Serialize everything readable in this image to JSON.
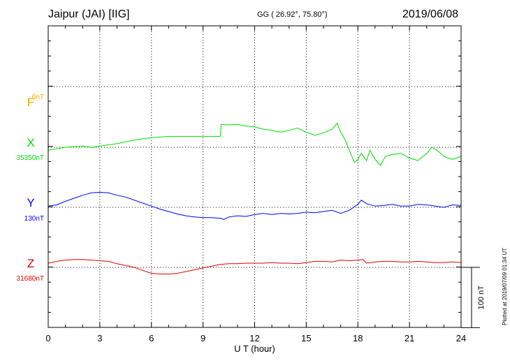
{
  "header": {
    "station": "Jaipur (JAI)  [IIG]",
    "coords": "GG ( 26.92°,  75.80°)",
    "date": "2019/06/08"
  },
  "footer": {
    "plotted": "Plotted at 2019/07/09 01:34 UT"
  },
  "scale_bar_label": "100 nT",
  "chart_data": {
    "type": "line",
    "xlabel": "U T (hour)",
    "xlim": [
      0,
      24
    ],
    "xticks": [
      0,
      3,
      6,
      9,
      12,
      15,
      18,
      21,
      24
    ],
    "grid": true,
    "scale_nT_per_division": 100,
    "series": [
      {
        "name": "F",
        "baseline_label": "0nT",
        "color": "#ffa500",
        "x": [],
        "values": []
      },
      {
        "name": "X",
        "baseline_label": "35350nT",
        "color": "#00dd00",
        "x": [
          0,
          1,
          2,
          2.5,
          3,
          3.5,
          4,
          5,
          6,
          7,
          8,
          9,
          10,
          10.05,
          10.5,
          11,
          11.5,
          12,
          12.5,
          13,
          13.5,
          14,
          14.5,
          15,
          15.5,
          16,
          16.5,
          16.8,
          17,
          17.3,
          17.5,
          17.8,
          18,
          18.2,
          18.5,
          18.7,
          19,
          19.3,
          19.6,
          20,
          20.5,
          21,
          21.5,
          22,
          22.3,
          22.6,
          23,
          23.5,
          24
        ],
        "values": [
          -5,
          0,
          2,
          0,
          2,
          4,
          6,
          12,
          16,
          18,
          18,
          18,
          18,
          38,
          37,
          38,
          35,
          34,
          30,
          28,
          25,
          28,
          32,
          25,
          20,
          24,
          30,
          40,
          25,
          10,
          -5,
          -25,
          -20,
          -10,
          -22,
          -5,
          -20,
          -30,
          -15,
          -12,
          -10,
          -18,
          -22,
          -10,
          0,
          -5,
          -15,
          -20,
          -15
        ]
      },
      {
        "name": "Y",
        "baseline_label": "130nT",
        "color": "#0000ff",
        "x": [
          0,
          0.5,
          1,
          1.5,
          2,
          2.5,
          3,
          3.5,
          4,
          4.5,
          5,
          5.5,
          6,
          6.5,
          7,
          7.5,
          8,
          8.5,
          9,
          9.5,
          10,
          10.2,
          10.5,
          11,
          11.5,
          12,
          12.5,
          13,
          13.5,
          14,
          14.5,
          15,
          15.5,
          16,
          16.5,
          17,
          17.5,
          18,
          18.2,
          18.5,
          19,
          19.5,
          20,
          20.5,
          21,
          21.5,
          22,
          22.5,
          23,
          23.5,
          24
        ],
        "values": [
          2,
          4,
          10,
          15,
          20,
          24,
          25,
          24,
          20,
          17,
          12,
          7,
          2,
          -3,
          -7,
          -11,
          -14,
          -16,
          -17,
          -17,
          -18,
          -20,
          -16,
          -14,
          -15,
          -12,
          -10,
          -12,
          -10,
          -11,
          -10,
          -8,
          -9,
          -7,
          -5,
          -10,
          -5,
          5,
          12,
          6,
          2,
          3,
          5,
          2,
          2,
          5,
          4,
          2,
          0,
          4,
          3
        ]
      },
      {
        "name": "Z",
        "baseline_label": "31680nT",
        "color": "#dd0000",
        "x": [
          0,
          0.5,
          1,
          1.5,
          2,
          2.5,
          3,
          3.5,
          4,
          4.5,
          5,
          5.5,
          6,
          6.5,
          7,
          7.5,
          8,
          8.5,
          9,
          9.5,
          10,
          10.5,
          11,
          11.5,
          12,
          12.5,
          13,
          13.5,
          14,
          14.5,
          15,
          15.5,
          16,
          16.5,
          17,
          17.5,
          18,
          18.3,
          18.5,
          19,
          19.5,
          20,
          20.5,
          21,
          21.5,
          22,
          22.5,
          23,
          23.5,
          24
        ],
        "values": [
          7,
          10,
          12,
          13,
          13,
          12,
          11,
          10,
          6,
          3,
          0,
          -5,
          -10,
          -11,
          -11,
          -10,
          -7,
          -4,
          -1,
          2,
          5,
          6,
          6,
          7,
          7,
          7,
          8,
          7,
          7,
          6,
          8,
          10,
          10,
          9,
          12,
          11,
          12,
          13,
          7,
          9,
          10,
          10,
          9,
          9,
          10,
          9,
          8,
          8,
          9,
          8
        ]
      }
    ]
  }
}
